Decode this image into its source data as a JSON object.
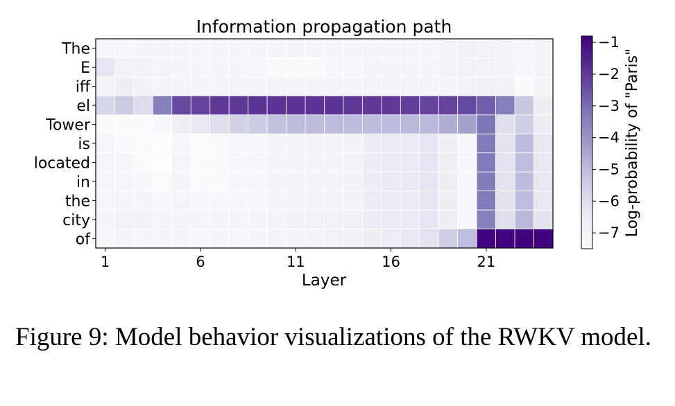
{
  "chart_data": {
    "type": "heatmap",
    "title": "Information propagation path",
    "xlabel": "Layer",
    "ylabel": "",
    "x_tick_labels": [
      "1",
      "6",
      "11",
      "16",
      "21"
    ],
    "x_tick_layers": [
      1,
      6,
      11,
      16,
      21
    ],
    "n_layers": 24,
    "rows": [
      "The",
      "E",
      "iff",
      "el",
      "Tower",
      "is",
      "located",
      "in",
      "the",
      "city",
      "of"
    ],
    "colorbar": {
      "label": "Log-probability of \"Paris\"",
      "ticks": [
        "−1",
        "−2",
        "−3",
        "−4",
        "−5",
        "−6",
        "−7"
      ],
      "tick_values": [
        -1,
        -2,
        -3,
        -4,
        -5,
        -6,
        -7
      ],
      "vmin": -7.5,
      "vmax": -0.8,
      "colormap": "Purples"
    },
    "values": [
      [
        -7.2,
        -7.2,
        -7.1,
        -7.1,
        -7.1,
        -7.1,
        -7.1,
        -7.1,
        -7.1,
        -7.1,
        -7.1,
        -7.1,
        -7.1,
        -7.1,
        -7.1,
        -7.1,
        -7.1,
        -7.1,
        -7.0,
        -6.9,
        -6.9,
        -7.0,
        -7.2,
        -7.0
      ],
      [
        -6.3,
        -6.9,
        -6.9,
        -7.0,
        -7.1,
        -7.1,
        -7.1,
        -7.1,
        -7.2,
        -7.3,
        -7.3,
        -7.3,
        -7.2,
        -7.2,
        -7.1,
        -7.1,
        -7.1,
        -7.1,
        -7.0,
        -6.9,
        -6.9,
        -7.0,
        -7.2,
        -7.0
      ],
      [
        -7.0,
        -6.7,
        -6.9,
        -7.0,
        -7.0,
        -7.0,
        -7.0,
        -7.0,
        -7.0,
        -7.0,
        -7.0,
        -7.0,
        -7.0,
        -7.0,
        -7.0,
        -7.0,
        -7.0,
        -7.0,
        -7.0,
        -6.9,
        -6.8,
        -6.9,
        -7.3,
        -7.0
      ],
      [
        -5.7,
        -5.4,
        -5.9,
        -3.4,
        -2.3,
        -2.2,
        -2.0,
        -2.0,
        -1.9,
        -1.9,
        -1.9,
        -1.9,
        -1.9,
        -2.0,
        -2.0,
        -2.0,
        -2.1,
        -2.2,
        -2.2,
        -2.3,
        -2.7,
        -3.4,
        -5.3,
        -6.7
      ],
      [
        -7.3,
        -7.4,
        -7.4,
        -7.2,
        -6.7,
        -6.4,
        -6.0,
        -5.6,
        -5.4,
        -5.1,
        -5.0,
        -5.0,
        -5.0,
        -5.0,
        -5.0,
        -5.0,
        -4.9,
        -4.9,
        -4.6,
        -4.3,
        -3.2,
        -6.0,
        -5.5,
        -6.7
      ],
      [
        -7.1,
        -7.3,
        -7.4,
        -7.5,
        -7.2,
        -7.4,
        -7.3,
        -7.2,
        -7.2,
        -7.0,
        -7.0,
        -7.0,
        -7.0,
        -6.9,
        -6.6,
        -6.5,
        -6.5,
        -6.3,
        -6.7,
        -7.2,
        -3.3,
        -6.2,
        -5.0,
        -6.4
      ],
      [
        -7.1,
        -7.1,
        -7.3,
        -7.5,
        -7.1,
        -7.4,
        -7.3,
        -7.2,
        -7.2,
        -7.0,
        -7.0,
        -7.0,
        -7.0,
        -6.9,
        -6.6,
        -6.5,
        -6.5,
        -6.3,
        -6.7,
        -7.2,
        -3.3,
        -6.2,
        -5.0,
        -6.4
      ],
      [
        -7.1,
        -7.1,
        -7.2,
        -7.4,
        -7.1,
        -7.4,
        -7.3,
        -7.2,
        -7.2,
        -7.0,
        -7.0,
        -7.0,
        -7.0,
        -6.9,
        -6.6,
        -6.5,
        -6.5,
        -6.3,
        -6.7,
        -7.2,
        -3.3,
        -6.2,
        -5.0,
        -6.4
      ],
      [
        -7.1,
        -7.0,
        -7.1,
        -7.2,
        -7.0,
        -7.2,
        -7.2,
        -7.2,
        -7.2,
        -7.0,
        -7.0,
        -7.0,
        -7.0,
        -6.9,
        -6.6,
        -6.5,
        -6.5,
        -6.3,
        -6.7,
        -7.2,
        -3.3,
        -6.2,
        -5.0,
        -6.4
      ],
      [
        -7.1,
        -6.9,
        -6.9,
        -7.0,
        -7.0,
        -7.1,
        -7.1,
        -7.1,
        -7.1,
        -7.0,
        -6.9,
        -6.9,
        -6.9,
        -6.8,
        -6.6,
        -6.5,
        -6.5,
        -6.3,
        -6.7,
        -7.2,
        -3.4,
        -6.0,
        -4.9,
        -6.2
      ],
      [
        -7.2,
        -7.1,
        -7.1,
        -7.1,
        -7.1,
        -7.1,
        -7.1,
        -7.1,
        -7.1,
        -7.0,
        -7.0,
        -7.0,
        -6.9,
        -6.8,
        -6.7,
        -6.6,
        -6.4,
        -6.2,
        -5.5,
        -5.0,
        -0.9,
        -0.9,
        -0.9,
        -0.9
      ]
    ]
  },
  "caption": {
    "text": "Figure 9: Model behavior visualizations of the RWKV model."
  }
}
